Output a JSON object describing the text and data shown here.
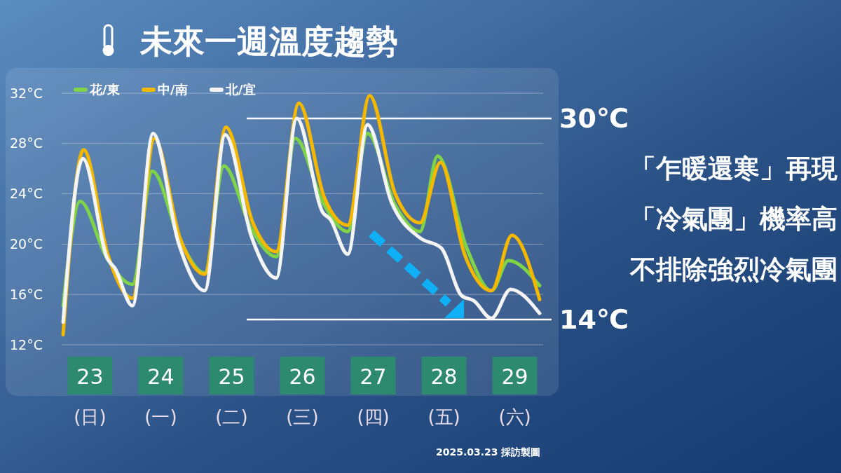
{
  "chart_data": {
    "type": "line",
    "title": "未來一週溫度趨勢",
    "xlim": [
      22.6,
      29.4
    ],
    "xticks": [
      {
        "value": 23,
        "label": "23\n(日)"
      },
      {
        "value": 24,
        "label": "24\n(一)"
      },
      {
        "value": 25,
        "label": "25\n(二)"
      },
      {
        "value": 26,
        "label": "26\n(三)"
      },
      {
        "value": 27,
        "label": "27\n(四)"
      },
      {
        "value": 28,
        "label": "28\n(五)"
      },
      {
        "value": 29,
        "label": "29\n(六)"
      }
    ],
    "ylim": [
      12,
      32
    ],
    "yticks": [
      {
        "value": 12,
        "label": "12°C"
      },
      {
        "value": 16,
        "label": "16°C"
      },
      {
        "value": 20,
        "label": "20°C"
      },
      {
        "value": 24,
        "label": "24°C"
      },
      {
        "value": 28,
        "label": "28°C"
      },
      {
        "value": 32,
        "label": "32°C"
      }
    ],
    "grid": "y",
    "legend": "top left",
    "marker": "none",
    "line_style": "solid",
    "series": [
      {
        "name": "花/東",
        "color": "#7ed348",
        "x": [
          22.62,
          22.86,
          23.23,
          23.6,
          23.88,
          24.27,
          24.62,
          24.89,
          25.28,
          25.63,
          25.9,
          26.29,
          26.64,
          26.92,
          27.31,
          27.66,
          27.91,
          28.32,
          28.67,
          28.91,
          29.35
        ],
        "values": [
          15.1,
          23.4,
          19.0,
          16.8,
          25.8,
          20.3,
          17.7,
          26.2,
          21.2,
          19.0,
          28.4,
          23.3,
          21.0,
          28.8,
          23.1,
          21.0,
          27.0,
          19.7,
          16.3,
          18.7,
          16.7
        ]
      },
      {
        "name": "中/南",
        "color": "#f5b800",
        "x": [
          22.62,
          22.91,
          23.25,
          23.6,
          23.91,
          24.27,
          24.62,
          24.92,
          25.3,
          25.63,
          25.95,
          26.31,
          26.64,
          26.95,
          27.31,
          27.66,
          27.95,
          28.29,
          28.67,
          28.96,
          29.35
        ],
        "values": [
          12.8,
          27.5,
          19.2,
          15.7,
          28.4,
          20.5,
          17.6,
          29.3,
          21.7,
          19.4,
          31.2,
          23.7,
          21.5,
          31.8,
          24.0,
          21.7,
          26.5,
          19.2,
          16.3,
          20.7,
          15.6
        ]
      },
      {
        "name": "北/宜",
        "color": "#f4f4f4",
        "x": [
          22.62,
          22.9,
          23.25,
          23.35,
          23.6,
          23.89,
          24.25,
          24.62,
          24.91,
          25.28,
          25.63,
          25.92,
          26.29,
          26.39,
          26.64,
          26.92,
          27.26,
          27.66,
          27.96,
          28.25,
          28.42,
          28.67,
          28.94,
          29.35
        ],
        "values": [
          13.8,
          26.8,
          18.8,
          18.1,
          15.1,
          28.8,
          20.1,
          16.3,
          28.7,
          20.6,
          17.3,
          30.0,
          22.5,
          22.0,
          19.2,
          29.5,
          23.3,
          20.5,
          19.7,
          15.9,
          15.5,
          14.1,
          16.4,
          14.5
        ]
      }
    ],
    "ref_lines": [
      {
        "axis": "y",
        "value": 30,
        "label": "30℃",
        "color": "#ffffff"
      },
      {
        "axis": "y",
        "value": 14,
        "label": "14℃",
        "color": "#ffffff"
      }
    ],
    "annotations": [
      "「乍暖還寒」再現",
      "「冷氣團」機率高",
      "不排除強烈冷氣團",
      "2025.03.23 採訪製圖"
    ]
  }
}
